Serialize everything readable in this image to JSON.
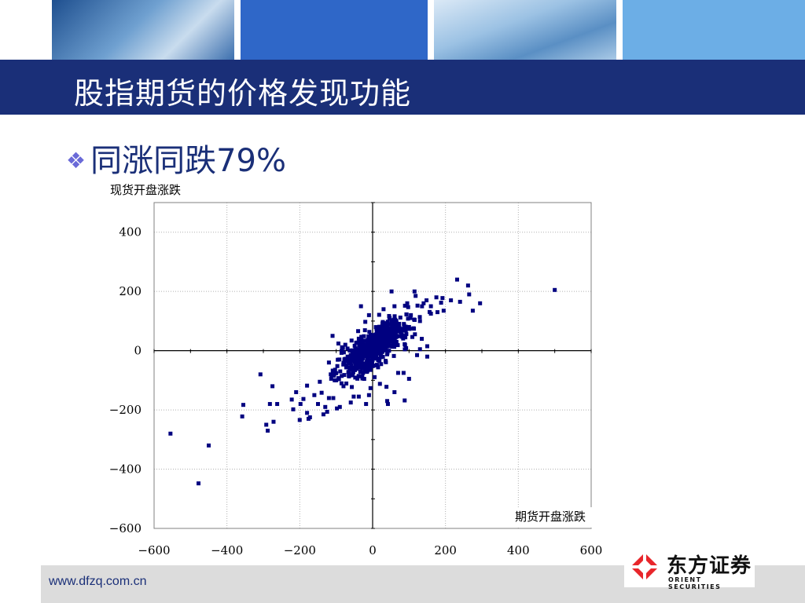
{
  "header": {
    "title": "股指期货的价格发现功能"
  },
  "bullet": {
    "text": "同涨同跌79%"
  },
  "chart_data": {
    "type": "scatter",
    "ylabel": "现货开盘涨跌",
    "xlabel": "期货开盘涨跌",
    "xlim": [
      -600,
      600
    ],
    "ylim": [
      -600,
      500
    ],
    "xticks": [
      -600,
      -400,
      -200,
      0,
      200,
      400,
      600
    ],
    "yticks": [
      -600,
      -400,
      -200,
      0,
      200,
      400
    ],
    "grid": true,
    "point_color": "#000080",
    "series": [
      {
        "outliers": [
          [
            -555,
            -280
          ],
          [
            -478,
            -448
          ],
          [
            -450,
            -320
          ],
          [
            -358,
            -222
          ],
          [
            -355,
            -183
          ],
          [
            -308,
            -80
          ],
          [
            -292,
            -250
          ],
          [
            -288,
            -270
          ],
          [
            -282,
            -180
          ],
          [
            -272,
            -240
          ],
          [
            -275,
            -120
          ],
          [
            -262,
            -180
          ],
          [
            -222,
            -165
          ],
          [
            -218,
            -198
          ],
          [
            -210,
            -140
          ],
          [
            -198,
            -180
          ],
          [
            -190,
            -163
          ],
          [
            -180,
            -210
          ],
          [
            -180,
            -118
          ],
          [
            -176,
            -230
          ],
          [
            -172,
            -225
          ],
          [
            -160,
            -150
          ],
          [
            -150,
            -180
          ],
          [
            -145,
            -105
          ],
          [
            -140,
            -142
          ],
          [
            -135,
            -215
          ],
          [
            -130,
            -190
          ],
          [
            -120,
            -160
          ],
          [
            -115,
            -80
          ],
          [
            -108,
            -160
          ],
          [
            -98,
            -195
          ],
          [
            -90,
            -190
          ],
          [
            -60,
            -175
          ],
          [
            -52,
            -155
          ],
          [
            -38,
            -155
          ],
          [
            -10,
            -150
          ],
          [
            -6,
            -65
          ],
          [
            20,
            -112
          ],
          [
            38,
            -122
          ],
          [
            42,
            -180
          ],
          [
            60,
            -140
          ],
          [
            88,
            -168
          ],
          [
            100,
            -95
          ],
          [
            -32,
            150
          ],
          [
            -110,
            50
          ],
          [
            -75,
            20
          ],
          [
            -120,
            -40
          ],
          [
            -100,
            -100
          ],
          [
            130,
            100
          ],
          [
            148,
            170
          ],
          [
            160,
            150
          ],
          [
            178,
            130
          ],
          [
            188,
            162
          ],
          [
            195,
            135
          ],
          [
            215,
            170
          ],
          [
            232,
            240
          ],
          [
            240,
            165
          ],
          [
            262,
            220
          ],
          [
            265,
            190
          ],
          [
            275,
            135
          ],
          [
            295,
            160
          ],
          [
            500,
            205
          ],
          [
            122,
            -15
          ],
          [
            130,
            5
          ],
          [
            150,
            15
          ],
          [
            160,
            125
          ],
          [
            118,
            185
          ],
          [
            95,
            160
          ],
          [
            105,
            120
          ],
          [
            140,
            160
          ],
          [
            175,
            180
          ],
          [
            52,
            200
          ],
          [
            60,
            150
          ],
          [
            115,
            200
          ],
          [
            30,
            140
          ],
          [
            -10,
            120
          ],
          [
            150,
            -20
          ],
          [
            40,
            -170
          ],
          [
            70,
            -75
          ],
          [
            -18,
            -180
          ],
          [
            -80,
            -120
          ],
          [
            85,
            -75
          ],
          [
            135,
            40
          ],
          [
            100,
            80
          ]
        ]
      }
    ]
  },
  "footer": {
    "url": "www.dfzq.com.cn"
  },
  "logo": {
    "cn": "东方证券",
    "en": "ORIENT SECURITIES",
    "mark_color": "#e8262b"
  }
}
